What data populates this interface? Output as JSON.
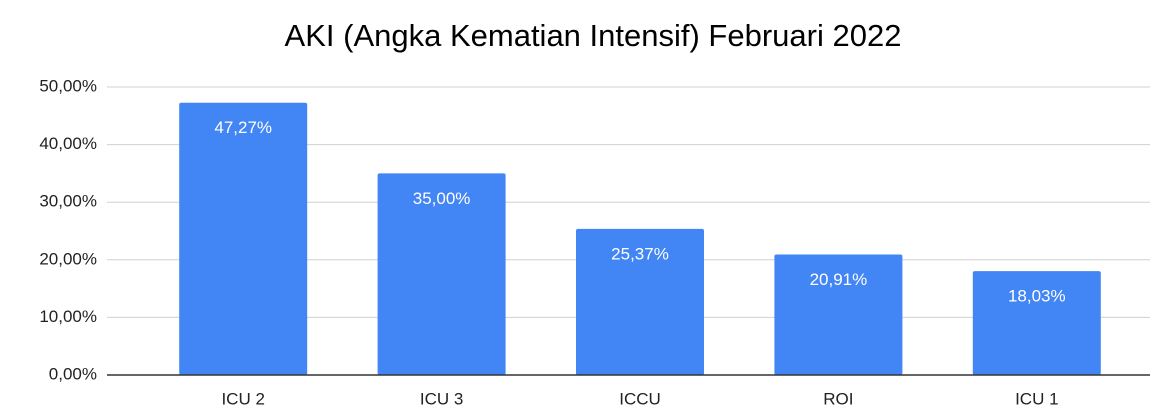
{
  "chart_data": {
    "type": "bar",
    "title": "AKI (Angka Kematian Intensif) Februari 2022",
    "categories": [
      "ICU 2",
      "ICU 3",
      "ICCU",
      "ROI",
      "ICU 1"
    ],
    "values": [
      47.27,
      35,
      25.37,
      20.91,
      18.03
    ],
    "value_labels": [
      "47,27%",
      "35,00%",
      "25,37%",
      "20,91%",
      "18,03%"
    ],
    "color": "#4285f4",
    "ylim": [
      0,
      50
    ],
    "yticks": [
      {
        "value": 0,
        "label": "0,00%"
      },
      {
        "value": 10,
        "label": "10,00%"
      },
      {
        "value": 20,
        "label": "20,00%"
      },
      {
        "value": 30,
        "label": "30,00%"
      },
      {
        "value": 40,
        "label": "40,00%"
      },
      {
        "value": 50,
        "label": "50,00%"
      }
    ],
    "grid": true
  }
}
